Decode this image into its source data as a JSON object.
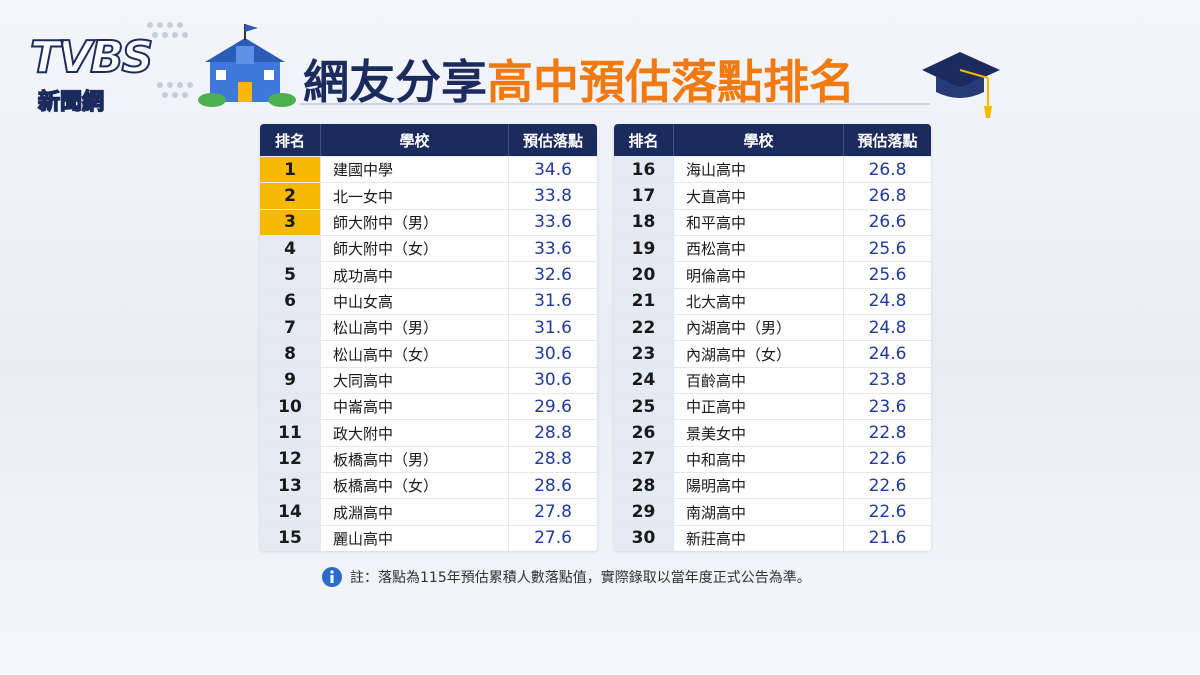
{
  "logo": {
    "brand": "TVBS",
    "subtitle": "新聞網"
  },
  "title": {
    "part1": "網友分享",
    "part2": "高中預估落點排名"
  },
  "tables": [
    {
      "header": [
        "排名",
        "學校",
        "預估落點"
      ],
      "rows": [
        [
          1,
          "建國中學",
          34.6
        ],
        [
          2,
          "北一女中",
          33.8
        ],
        [
          3,
          "師大附中（男）",
          33.6
        ],
        [
          4,
          "師大附中（女）",
          33.6
        ],
        [
          5,
          "成功高中",
          32.6
        ],
        [
          6,
          "中山女高",
          31.6
        ],
        [
          7,
          "松山高中（男）",
          31.6
        ],
        [
          8,
          "松山高中（女）",
          30.6
        ],
        [
          9,
          "大同高中",
          30.6
        ],
        [
          10,
          "中崙高中",
          29.6
        ],
        [
          11,
          "政大附中",
          28.8
        ],
        [
          12,
          "板橋高中（男）",
          28.8
        ],
        [
          13,
          "板橋高中（女）",
          28.6
        ],
        [
          14,
          "成淵高中",
          27.8
        ],
        [
          15,
          "麗山高中",
          27.6
        ]
      ]
    },
    {
      "header": [
        "排名",
        "學校",
        "預估落點"
      ],
      "rows": [
        [
          16,
          "海山高中",
          26.8
        ],
        [
          17,
          "大直高中",
          26.8
        ],
        [
          18,
          "和平高中",
          26.6
        ],
        [
          19,
          "西松高中",
          25.6
        ],
        [
          20,
          "明倫高中",
          25.6
        ],
        [
          21,
          "北大高中",
          24.8
        ],
        [
          22,
          "內湖高中（男）",
          24.8
        ],
        [
          23,
          "內湖高中（女）",
          24.6
        ],
        [
          24,
          "百齡高中",
          23.8
        ],
        [
          25,
          "中正高中",
          23.6
        ],
        [
          26,
          "景美女中",
          22.8
        ],
        [
          27,
          "中和高中",
          22.6
        ],
        [
          28,
          "陽明高中",
          22.6
        ],
        [
          29,
          "南湖高中",
          22.6
        ],
        [
          30,
          "新莊高中",
          21.6
        ]
      ]
    }
  ],
  "note": "註：落點為115年預估累積人數落點值，實際錄取以當年度正式公告為準。"
}
